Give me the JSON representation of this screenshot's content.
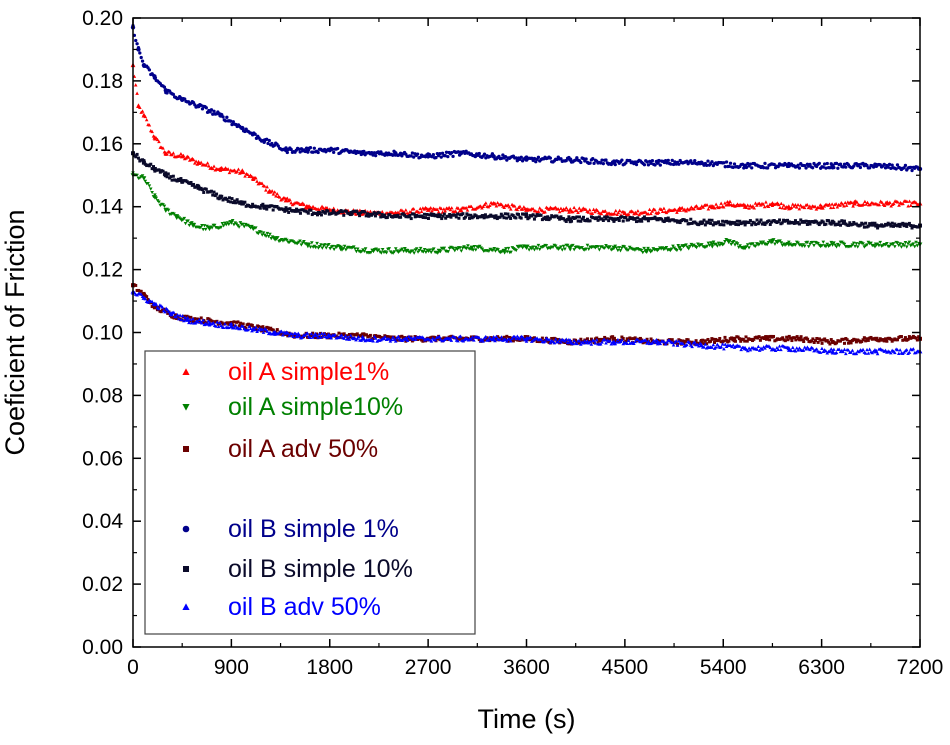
{
  "chart_data": {
    "type": "scatter",
    "xlabel": "Time (s)",
    "ylabel": "Coeficient of Friction",
    "xlim": [
      0,
      7200
    ],
    "ylim": [
      0.0,
      0.2
    ],
    "x_ticks": [
      "0",
      "900",
      "1800",
      "2700",
      "3600",
      "4500",
      "5400",
      "6300",
      "7200"
    ],
    "y_ticks": [
      "0.00",
      "0.02",
      "0.04",
      "0.06",
      "0.08",
      "0.10",
      "0.12",
      "0.14",
      "0.16",
      "0.18",
      "0.20"
    ],
    "grid": false,
    "legend_position": "bottom-left",
    "series": [
      {
        "name": "oil A simple1%",
        "color": "#ff0000",
        "marker": "triangle-up",
        "points": [
          [
            0,
            0.185
          ],
          [
            50,
            0.172
          ],
          [
            100,
            0.169
          ],
          [
            200,
            0.162
          ],
          [
            300,
            0.157
          ],
          [
            450,
            0.156
          ],
          [
            600,
            0.154
          ],
          [
            800,
            0.152
          ],
          [
            1000,
            0.151
          ],
          [
            1100,
            0.149
          ],
          [
            1250,
            0.145
          ],
          [
            1400,
            0.142
          ],
          [
            1600,
            0.14
          ],
          [
            1800,
            0.139
          ],
          [
            2100,
            0.138
          ],
          [
            2400,
            0.138
          ],
          [
            2700,
            0.139
          ],
          [
            3000,
            0.139
          ],
          [
            3300,
            0.141
          ],
          [
            3600,
            0.139
          ],
          [
            4000,
            0.139
          ],
          [
            4500,
            0.138
          ],
          [
            5000,
            0.139
          ],
          [
            5300,
            0.14
          ],
          [
            5450,
            0.141
          ],
          [
            5600,
            0.14
          ],
          [
            5850,
            0.141
          ],
          [
            6000,
            0.14
          ],
          [
            6300,
            0.14
          ],
          [
            6600,
            0.141
          ],
          [
            6900,
            0.141
          ],
          [
            7200,
            0.141
          ]
        ]
      },
      {
        "name": "oil A simple10%",
        "color": "#008000",
        "marker": "triangle-down",
        "points": [
          [
            0,
            0.15
          ],
          [
            100,
            0.149
          ],
          [
            200,
            0.143
          ],
          [
            300,
            0.139
          ],
          [
            400,
            0.137
          ],
          [
            550,
            0.134
          ],
          [
            700,
            0.133
          ],
          [
            900,
            0.135
          ],
          [
            1100,
            0.133
          ],
          [
            1300,
            0.13
          ],
          [
            1600,
            0.128
          ],
          [
            1900,
            0.127
          ],
          [
            2200,
            0.126
          ],
          [
            2500,
            0.126
          ],
          [
            2800,
            0.126
          ],
          [
            3100,
            0.127
          ],
          [
            3400,
            0.126
          ],
          [
            3600,
            0.127
          ],
          [
            4000,
            0.127
          ],
          [
            4400,
            0.127
          ],
          [
            4700,
            0.126
          ],
          [
            5000,
            0.127
          ],
          [
            5300,
            0.128
          ],
          [
            5450,
            0.129
          ],
          [
            5600,
            0.127
          ],
          [
            5850,
            0.129
          ],
          [
            6000,
            0.128
          ],
          [
            6400,
            0.128
          ],
          [
            6800,
            0.128
          ],
          [
            7200,
            0.128
          ]
        ]
      },
      {
        "name": "oil A adv 50%",
        "color": "#6b0000",
        "marker": "square",
        "points": [
          [
            0,
            0.115
          ],
          [
            100,
            0.112
          ],
          [
            200,
            0.108
          ],
          [
            400,
            0.105
          ],
          [
            600,
            0.104
          ],
          [
            900,
            0.103
          ],
          [
            1200,
            0.101
          ],
          [
            1500,
            0.099
          ],
          [
            1800,
            0.099
          ],
          [
            2100,
            0.099
          ],
          [
            2400,
            0.098
          ],
          [
            2700,
            0.098
          ],
          [
            3000,
            0.098
          ],
          [
            3300,
            0.098
          ],
          [
            3600,
            0.098
          ],
          [
            4000,
            0.097
          ],
          [
            4400,
            0.098
          ],
          [
            4800,
            0.097
          ],
          [
            5200,
            0.097
          ],
          [
            5500,
            0.098
          ],
          [
            5800,
            0.098
          ],
          [
            6100,
            0.098
          ],
          [
            6400,
            0.097
          ],
          [
            6800,
            0.098
          ],
          [
            7200,
            0.098
          ]
        ]
      },
      {
        "name": "oil B simple 1%",
        "color": "#00008b",
        "marker": "circle",
        "points": [
          [
            0,
            0.197
          ],
          [
            50,
            0.19
          ],
          [
            100,
            0.185
          ],
          [
            200,
            0.181
          ],
          [
            300,
            0.177
          ],
          [
            450,
            0.174
          ],
          [
            600,
            0.172
          ],
          [
            800,
            0.169
          ],
          [
            1000,
            0.165
          ],
          [
            1200,
            0.161
          ],
          [
            1400,
            0.158
          ],
          [
            1600,
            0.158
          ],
          [
            1800,
            0.158
          ],
          [
            2100,
            0.157
          ],
          [
            2400,
            0.157
          ],
          [
            2700,
            0.156
          ],
          [
            3000,
            0.157
          ],
          [
            3300,
            0.156
          ],
          [
            3600,
            0.155
          ],
          [
            4000,
            0.155
          ],
          [
            4400,
            0.154
          ],
          [
            4800,
            0.154
          ],
          [
            5200,
            0.154
          ],
          [
            5600,
            0.153
          ],
          [
            6000,
            0.153
          ],
          [
            6400,
            0.153
          ],
          [
            6800,
            0.153
          ],
          [
            7200,
            0.152
          ]
        ]
      },
      {
        "name": "oil B simple 10%",
        "color": "#0a0a2a",
        "marker": "square",
        "points": [
          [
            0,
            0.157
          ],
          [
            100,
            0.154
          ],
          [
            200,
            0.152
          ],
          [
            300,
            0.15
          ],
          [
            450,
            0.148
          ],
          [
            600,
            0.146
          ],
          [
            800,
            0.143
          ],
          [
            1000,
            0.141
          ],
          [
            1200,
            0.14
          ],
          [
            1400,
            0.139
          ],
          [
            1700,
            0.138
          ],
          [
            2000,
            0.138
          ],
          [
            2400,
            0.137
          ],
          [
            2800,
            0.137
          ],
          [
            3200,
            0.137
          ],
          [
            3600,
            0.137
          ],
          [
            4000,
            0.136
          ],
          [
            4400,
            0.136
          ],
          [
            4800,
            0.136
          ],
          [
            5200,
            0.135
          ],
          [
            5600,
            0.135
          ],
          [
            6000,
            0.135
          ],
          [
            6400,
            0.135
          ],
          [
            6800,
            0.134
          ],
          [
            7200,
            0.134
          ]
        ]
      },
      {
        "name": "oil B adv 50%",
        "color": "#0000ff",
        "marker": "triangle-up",
        "points": [
          [
            0,
            0.113
          ],
          [
            100,
            0.111
          ],
          [
            200,
            0.109
          ],
          [
            350,
            0.106
          ],
          [
            500,
            0.104
          ],
          [
            700,
            0.103
          ],
          [
            900,
            0.102
          ],
          [
            1100,
            0.101
          ],
          [
            1300,
            0.1
          ],
          [
            1500,
            0.099
          ],
          [
            1800,
            0.099
          ],
          [
            2100,
            0.098
          ],
          [
            2500,
            0.098
          ],
          [
            2900,
            0.098
          ],
          [
            3300,
            0.098
          ],
          [
            3600,
            0.098
          ],
          [
            4000,
            0.097
          ],
          [
            4400,
            0.097
          ],
          [
            4800,
            0.097
          ],
          [
            5200,
            0.096
          ],
          [
            5600,
            0.095
          ],
          [
            6000,
            0.095
          ],
          [
            6400,
            0.094
          ],
          [
            6800,
            0.094
          ],
          [
            7200,
            0.094
          ]
        ]
      }
    ],
    "legend_groups": [
      3,
      3
    ]
  }
}
